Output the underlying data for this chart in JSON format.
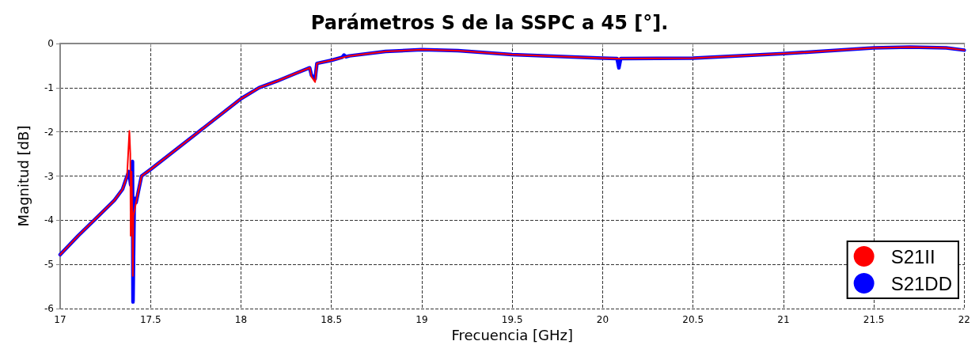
{
  "chart_data": {
    "type": "line",
    "title": "Parámetros S de la SSPC a 45 [°].",
    "xlabel": "Frecuencia [GHz]",
    "ylabel": "Magnitud [dB]",
    "xlim": [
      17,
      22
    ],
    "xticks": [
      17,
      17.5,
      18,
      18.5,
      19,
      19.5,
      20,
      20.5,
      21,
      21.5,
      22
    ],
    "ylim": [
      -6,
      0
    ],
    "yticks": [
      -6,
      -5,
      -4,
      -3,
      -2,
      -1,
      0
    ],
    "grid": true,
    "legend": "bottom right",
    "marker": "none",
    "line_style": "solid",
    "series": [
      {
        "name": "S21II",
        "color": "#ff0000",
        "x": [
          17,
          17.1,
          17.2,
          17.3,
          17.345,
          17.37,
          17.38,
          17.383,
          17.388,
          17.39,
          17.395,
          17.4,
          17.402,
          17.405,
          17.42,
          17.45,
          17.5,
          17.75,
          18,
          18.1,
          18.2,
          18.3,
          18.38,
          18.39,
          18.41,
          18.42,
          18.5,
          18.6,
          18.8,
          19,
          19.2,
          19.5,
          20,
          20.08,
          20.5,
          21,
          21.5,
          21.7,
          21.9,
          22
        ],
        "values": [
          -4.78,
          -4.35,
          -3.95,
          -3.55,
          -3.3,
          -3.0,
          -2.2,
          -1.98,
          -2.5,
          -4.35,
          -2.9,
          -4.2,
          -5.26,
          -3.9,
          -3.6,
          -3.0,
          -2.85,
          -2.05,
          -1.25,
          -1.0,
          -0.85,
          -0.68,
          -0.55,
          -0.75,
          -0.87,
          -0.45,
          -0.38,
          -0.28,
          -0.18,
          -0.14,
          -0.16,
          -0.25,
          -0.33,
          -0.34,
          -0.33,
          -0.23,
          -0.1,
          -0.08,
          -0.1,
          -0.15
        ]
      },
      {
        "name": "S21DD",
        "color": "#0000ff",
        "x": [
          17,
          17.1,
          17.2,
          17.3,
          17.345,
          17.37,
          17.38,
          17.39,
          17.4,
          17.403,
          17.41,
          17.42,
          17.45,
          17.5,
          17.75,
          18,
          18.1,
          18.2,
          18.3,
          18.38,
          18.39,
          18.41,
          18.42,
          18.5,
          18.56,
          18.57,
          18.58,
          18.6,
          18.8,
          19,
          19.2,
          19.5,
          20,
          20.08,
          20.09,
          20.1,
          20.5,
          21,
          21.5,
          21.7,
          21.9,
          22
        ],
        "values": [
          -4.78,
          -4.35,
          -3.95,
          -3.55,
          -3.3,
          -3.0,
          -2.9,
          -3.2,
          -2.67,
          -5.85,
          -3.5,
          -3.6,
          -3.0,
          -2.85,
          -2.05,
          -1.25,
          -1.0,
          -0.85,
          -0.68,
          -0.55,
          -0.72,
          -0.8,
          -0.45,
          -0.38,
          -0.31,
          -0.26,
          -0.3,
          -0.28,
          -0.18,
          -0.14,
          -0.16,
          -0.25,
          -0.33,
          -0.34,
          -0.55,
          -0.34,
          -0.33,
          -0.23,
          -0.1,
          -0.08,
          -0.1,
          -0.15
        ]
      }
    ]
  }
}
